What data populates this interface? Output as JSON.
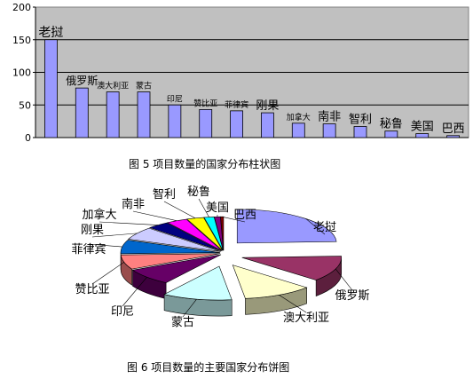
{
  "chart_data": [
    {
      "type": "bar",
      "categories": [
        "老挝",
        "俄罗斯",
        "澳大利亚",
        "蒙古",
        "印尼",
        "赞比亚",
        "菲律宾",
        "刚果",
        "加拿大",
        "南非",
        "智利",
        "秘鲁",
        "美国",
        "巴西"
      ],
      "values": [
        150,
        76,
        70,
        70,
        50,
        43,
        41,
        38,
        22,
        21,
        17,
        10,
        6,
        3
      ],
      "ylim": [
        0,
        200
      ],
      "yticks": [
        "0",
        "50",
        "100",
        "150",
        "200"
      ],
      "grid": true,
      "bar_color": "#9999ff",
      "plot_bg": "#c0c0c0",
      "caption": "图 5 项目数量的国家分布柱状图"
    },
    {
      "type": "pie",
      "labels": [
        "老挝",
        "俄罗斯",
        "澳大利亚",
        "蒙古",
        "印尼",
        "赞比亚",
        "菲律宾",
        "刚果",
        "加拿大",
        "南非",
        "智利",
        "秘鲁",
        "美国",
        "巴西"
      ],
      "values": [
        150,
        76,
        70,
        70,
        50,
        43,
        41,
        38,
        22,
        21,
        17,
        10,
        6,
        3
      ],
      "colors": [
        "#9999ff",
        "#993366",
        "#ffffcc",
        "#ccffff",
        "#660066",
        "#ff8080",
        "#0066cc",
        "#ccccff",
        "#000080",
        "#ff00ff",
        "#ffff00",
        "#00ffff",
        "#800080",
        "#800000"
      ],
      "caption": "图 6 项目数量的主要国家分布饼图"
    }
  ]
}
